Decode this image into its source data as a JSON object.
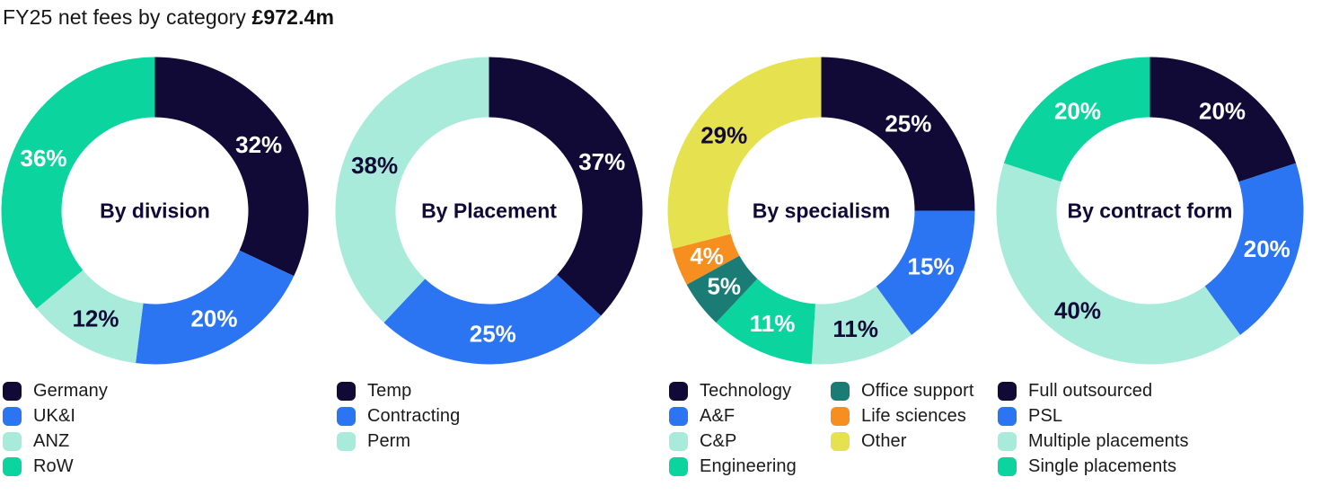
{
  "title": {
    "text": "FY25 net fees by category",
    "amount": "£972.4m"
  },
  "palette": {
    "navy": "#110A36",
    "blue": "#2C75F2",
    "mint": "#A9EBDB",
    "green": "#0CD49E",
    "teal": "#1A7C74",
    "orange": "#F78E20",
    "yellow": "#E6E14E",
    "label_on_dark": "#FFFFFF",
    "label_on_light": "#110A36",
    "text": "#1A1A1A"
  },
  "chart_data": [
    {
      "type": "donut",
      "center_label": "By division",
      "unit": "%",
      "legend_columns": 1,
      "segments": [
        {
          "label": "Germany",
          "value": 32,
          "color": "#110A36",
          "label_color": "#FFFFFF"
        },
        {
          "label": "UK&I",
          "value": 20,
          "color": "#2C75F2",
          "label_color": "#FFFFFF"
        },
        {
          "label": "ANZ",
          "value": 12,
          "color": "#A9EBDB",
          "label_color": "#110A36"
        },
        {
          "label": "RoW",
          "value": 36,
          "color": "#0CD49E",
          "label_color": "#FFFFFF"
        }
      ]
    },
    {
      "type": "donut",
      "center_label": "By Placement",
      "unit": "%",
      "legend_columns": 1,
      "segments": [
        {
          "label": "Temp",
          "value": 37,
          "color": "#110A36",
          "label_color": "#FFFFFF"
        },
        {
          "label": "Contracting",
          "value": 25,
          "color": "#2C75F2",
          "label_color": "#FFFFFF"
        },
        {
          "label": "Perm",
          "value": 38,
          "color": "#A9EBDB",
          "label_color": "#110A36"
        }
      ]
    },
    {
      "type": "donut",
      "center_label": "By specialism",
      "unit": "%",
      "legend_columns": 2,
      "segments": [
        {
          "label": "Technology",
          "value": 25,
          "color": "#110A36",
          "label_color": "#FFFFFF"
        },
        {
          "label": "A&F",
          "value": 15,
          "color": "#2C75F2",
          "label_color": "#FFFFFF"
        },
        {
          "label": "C&P",
          "value": 11,
          "color": "#A9EBDB",
          "label_color": "#110A36"
        },
        {
          "label": "Engineering",
          "value": 11,
          "color": "#0CD49E",
          "label_color": "#FFFFFF"
        },
        {
          "label": "Office support",
          "value": 5,
          "color": "#1A7C74",
          "label_color": "#FFFFFF"
        },
        {
          "label": "Life sciences",
          "value": 4,
          "color": "#F78E20",
          "label_color": "#FFFFFF"
        },
        {
          "label": "Other",
          "value": 29,
          "color": "#E6E14E",
          "label_color": "#110A36"
        }
      ]
    },
    {
      "type": "donut",
      "center_label": "By contract form",
      "unit": "%",
      "legend_columns": 1,
      "segments": [
        {
          "label": "Full outsourced",
          "value": 20,
          "color": "#110A36",
          "label_color": "#FFFFFF"
        },
        {
          "label": "PSL",
          "value": 20,
          "color": "#2C75F2",
          "label_color": "#FFFFFF"
        },
        {
          "label": "Multiple placements",
          "value": 40,
          "color": "#A9EBDB",
          "label_color": "#110A36"
        },
        {
          "label": "Single placements",
          "value": 20,
          "color": "#0CD49E",
          "label_color": "#FFFFFF"
        }
      ]
    }
  ],
  "layout": {
    "column_lefts": [
      0,
      372,
      742,
      1108
    ]
  }
}
